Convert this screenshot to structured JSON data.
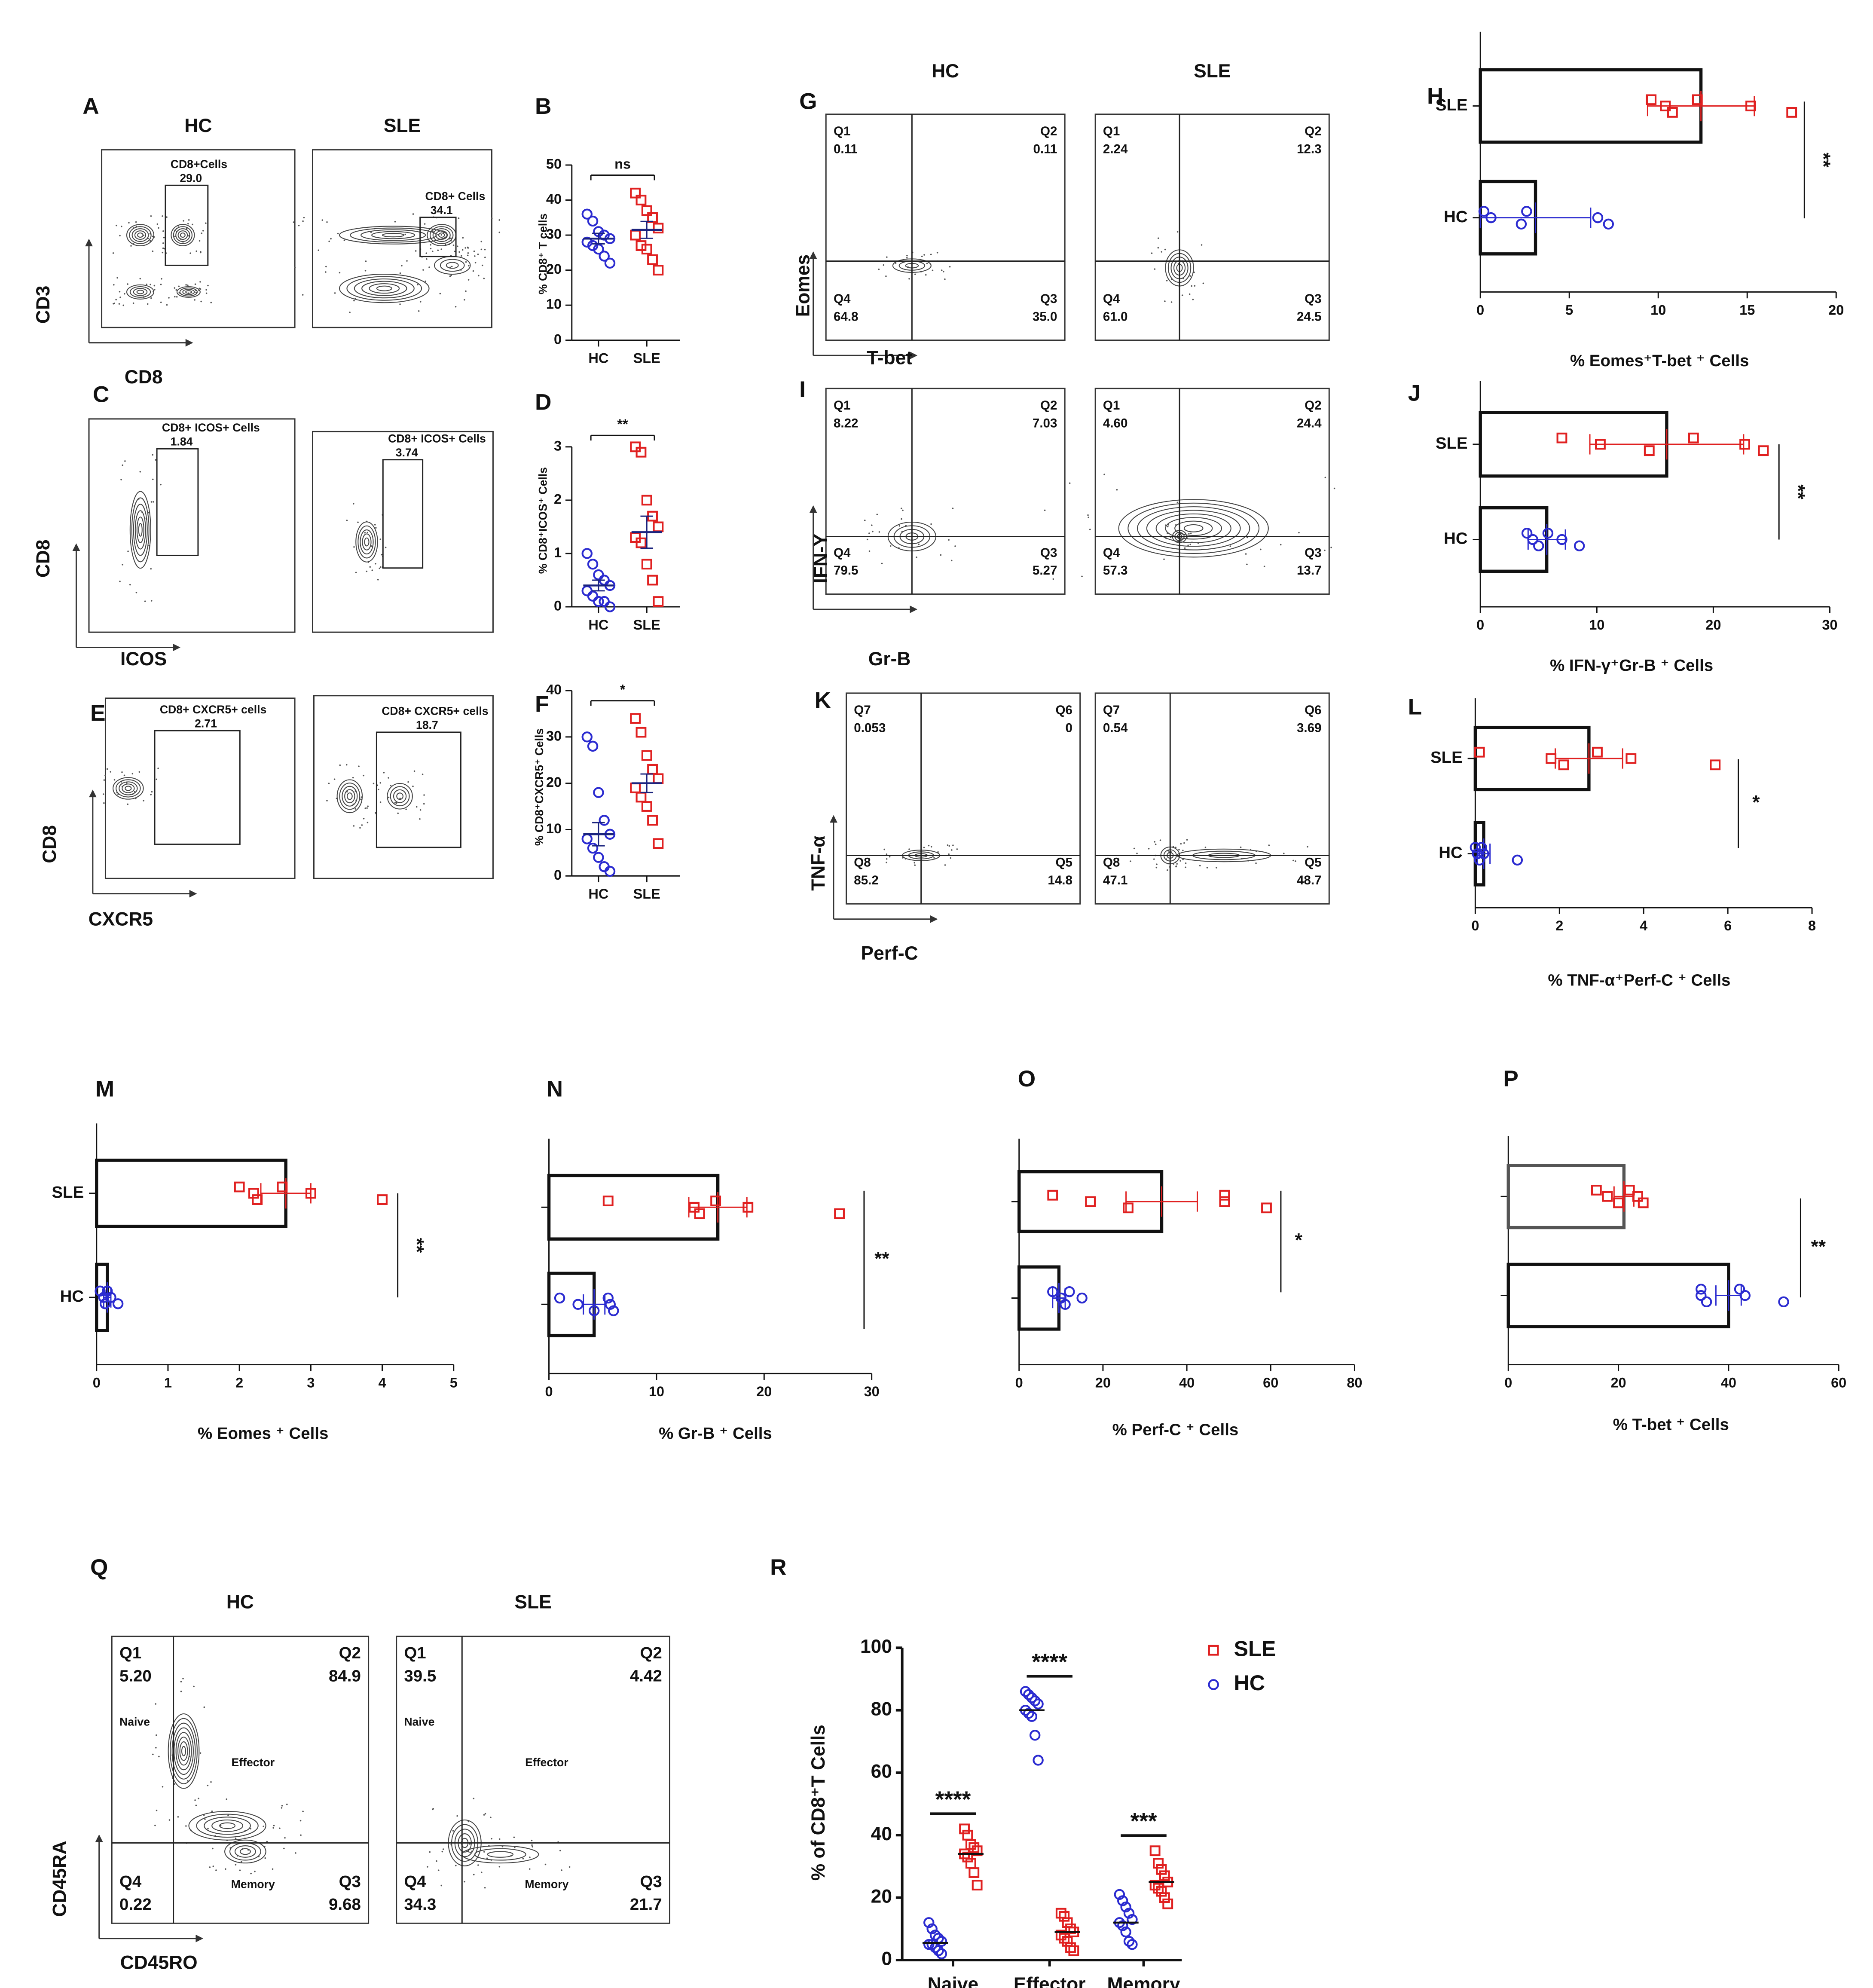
{
  "chart_data": [
    {
      "type": "flow",
      "panel": "A",
      "xlabel": "CD8",
      "ylabel": "CD3",
      "plots": [
        {
          "title": "HC",
          "gate": {
            "name": "CD8+Cells",
            "value": "29.0"
          }
        },
        {
          "title": "SLE",
          "gate": {
            "name": "CD8+ Cells",
            "value": "34.1"
          }
        }
      ]
    },
    {
      "type": "dot",
      "panel": "B",
      "ylabel": "% CD8⁺ T cells",
      "categories": [
        "HC",
        "SLE"
      ],
      "ylim": [
        0,
        50
      ],
      "yticks": [
        0,
        10,
        20,
        30,
        40,
        50
      ],
      "significance": "ns",
      "groups": [
        {
          "color": "#2b2bd0",
          "marker": "circle",
          "values": [
            36,
            34,
            31,
            30,
            29,
            28,
            27,
            26,
            24,
            22
          ],
          "mean": 29,
          "error": 1.5
        },
        {
          "color": "#e02020",
          "marker": "square",
          "values": [
            42,
            40,
            37,
            35,
            32,
            30,
            27,
            26,
            23,
            20
          ],
          "mean": 31.5,
          "error": 2.4
        }
      ]
    },
    {
      "type": "flow",
      "panel": "C",
      "xlabel": "ICOS",
      "ylabel": "CD8",
      "plots": [
        {
          "gate": {
            "name": "CD8+ ICOS+ Cells",
            "value": "1.84"
          }
        },
        {
          "gate": {
            "name": "CD8+ ICOS+ Cells",
            "value": "3.74"
          }
        }
      ]
    },
    {
      "type": "dot",
      "panel": "D",
      "ylabel": "% CD8⁺ICOS⁺ Cells",
      "categories": [
        "HC",
        "SLE"
      ],
      "ylim": [
        0,
        3
      ],
      "yticks": [
        0,
        1,
        2,
        3
      ],
      "significance": "**",
      "groups": [
        {
          "color": "#2b2bd0",
          "marker": "circle",
          "values": [
            1.0,
            0.8,
            0.6,
            0.5,
            0.4,
            0.3,
            0.2,
            0.1,
            0.1,
            0.0
          ],
          "mean": 0.4,
          "error": 0.1
        },
        {
          "color": "#e02020",
          "marker": "square",
          "values": [
            3.0,
            2.9,
            2.0,
            1.7,
            1.5,
            1.3,
            1.2,
            0.8,
            0.5,
            0.1
          ],
          "mean": 1.4,
          "error": 0.3
        }
      ]
    },
    {
      "type": "flow",
      "panel": "E",
      "xlabel": "CXCR5",
      "ylabel": "CD8",
      "plots": [
        {
          "gate": {
            "name": "CD8+ CXCR5+ cells",
            "value": "2.71"
          }
        },
        {
          "gate": {
            "name": "CD8+ CXCR5+ cells",
            "value": "18.7"
          }
        }
      ]
    },
    {
      "type": "dot",
      "panel": "F",
      "ylabel": "% CD8⁺CXCR5⁺ Cells",
      "categories": [
        "HC",
        "SLE"
      ],
      "ylim": [
        0,
        40
      ],
      "yticks": [
        0,
        10,
        20,
        30,
        40
      ],
      "significance": "*",
      "groups": [
        {
          "color": "#2b2bd0",
          "marker": "circle",
          "values": [
            30,
            28,
            18,
            12,
            9,
            8,
            6,
            4,
            2,
            1
          ],
          "mean": 9,
          "error": 2.5
        },
        {
          "color": "#e02020",
          "marker": "square",
          "values": [
            34,
            31,
            26,
            23,
            21,
            19,
            17,
            15,
            12,
            7
          ],
          "mean": 20,
          "error": 2
        }
      ]
    },
    {
      "type": "flow",
      "panel": "G",
      "xlabel": "T-bet",
      "ylabel": "Eomes",
      "plots": [
        {
          "title": "HC",
          "quadrants": [
            {
              "name": "Q1",
              "value": "0.11"
            },
            {
              "name": "Q2",
              "value": "0.11"
            },
            {
              "name": "Q4",
              "value": "64.8"
            },
            {
              "name": "Q3",
              "value": "35.0"
            }
          ]
        },
        {
          "title": "SLE",
          "quadrants": [
            {
              "name": "Q1",
              "value": "2.24"
            },
            {
              "name": "Q2",
              "value": "12.3"
            },
            {
              "name": "Q4",
              "value": "61.0"
            },
            {
              "name": "Q3",
              "value": "24.5"
            }
          ]
        }
      ]
    },
    {
      "type": "hbar",
      "panel": "H",
      "xlabel": "% Eomes⁺T-bet ⁺ Cells",
      "categories": [
        "SLE",
        "HC"
      ],
      "xlim": [
        0,
        20
      ],
      "xticks": [
        0,
        5,
        10,
        15,
        20
      ],
      "significance": "**",
      "values": [
        12.4,
        3.1
      ],
      "errors": [
        3.0,
        3.1
      ],
      "points": [
        [
          9.6,
          10.4,
          10.8,
          12.2,
          15.2,
          17.5
        ],
        [
          0.2,
          0.6,
          2.3,
          2.6,
          6.6,
          7.2
        ]
      ],
      "point_colors": [
        "#e02020",
        "#2b2bd0"
      ],
      "markers": [
        "square",
        "circle"
      ],
      "bar_colors": [
        "#111",
        "#111"
      ]
    },
    {
      "type": "flow",
      "panel": "I",
      "xlabel": "Gr-B",
      "ylabel": "IFN-Y",
      "plots": [
        {
          "quadrants": [
            {
              "name": "Q1",
              "value": "8.22"
            },
            {
              "name": "Q2",
              "value": "7.03"
            },
            {
              "name": "Q4",
              "value": "79.5"
            },
            {
              "name": "Q3",
              "value": "5.27"
            }
          ]
        },
        {
          "quadrants": [
            {
              "name": "Q1",
              "value": "4.60"
            },
            {
              "name": "Q2",
              "value": "24.4"
            },
            {
              "name": "Q4",
              "value": "57.3"
            },
            {
              "name": "Q3",
              "value": "13.7"
            }
          ]
        }
      ]
    },
    {
      "type": "hbar",
      "panel": "J",
      "xlabel": "% IFN-γ⁺Gr-B ⁺ Cells",
      "categories": [
        "SLE",
        "HC"
      ],
      "xlim": [
        0,
        30
      ],
      "xticks": [
        0,
        10,
        20,
        30
      ],
      "significance": "**",
      "values": [
        16,
        5.7
      ],
      "errors": [
        6.6,
        1.6
      ],
      "points": [
        [
          7,
          10.3,
          14.5,
          18.3,
          22.7,
          24.3
        ],
        [
          4.0,
          4.5,
          5,
          5.8,
          7,
          8.5
        ]
      ],
      "point_colors": [
        "#e02020",
        "#2b2bd0"
      ],
      "markers": [
        "square",
        "circle"
      ],
      "bar_colors": [
        "#111",
        "#111"
      ]
    },
    {
      "type": "flow",
      "panel": "K",
      "xlabel": "Perf-C",
      "ylabel": "TNF-α",
      "plots": [
        {
          "quadrants": [
            {
              "name": "Q7",
              "value": "0.053"
            },
            {
              "name": "Q6",
              "value": "0"
            },
            {
              "name": "Q8",
              "value": "85.2"
            },
            {
              "name": "Q5",
              "value": "14.8"
            }
          ]
        },
        {
          "quadrants": [
            {
              "name": "Q7",
              "value": "0.54"
            },
            {
              "name": "Q6",
              "value": "3.69"
            },
            {
              "name": "Q8",
              "value": "47.1"
            },
            {
              "name": "Q5",
              "value": "48.7"
            }
          ]
        }
      ]
    },
    {
      "type": "hbar",
      "panel": "L",
      "xlabel": "% TNF-α⁺Perf-C ⁺ Cells",
      "categories": [
        "SLE",
        "HC"
      ],
      "xlim": [
        0,
        8
      ],
      "xticks": [
        0,
        2,
        4,
        6,
        8
      ],
      "significance": "*",
      "values": [
        2.7,
        0.2
      ],
      "errors": [
        0.8,
        0.15
      ],
      "points": [
        [
          0.1,
          1.8,
          2.1,
          2.9,
          3.7,
          5.7
        ],
        [
          0.0,
          0.05,
          0.1,
          0.15,
          0.2,
          1.0
        ]
      ],
      "point_colors": [
        "#e02020",
        "#2b2bd0"
      ],
      "markers": [
        "square",
        "circle"
      ],
      "bar_colors": [
        "#111",
        "#111"
      ]
    },
    {
      "type": "hbar",
      "panel": "M",
      "xlabel": "% Eomes ⁺ Cells",
      "categories": [
        "SLE",
        "HC"
      ],
      "xlim": [
        0,
        5
      ],
      "xticks": [
        0,
        1,
        2,
        3,
        4,
        5
      ],
      "significance": "**",
      "values": [
        2.65,
        0.15
      ],
      "errors": [
        0.35,
        0.05
      ],
      "points": [
        [
          2.0,
          2.2,
          2.25,
          2.6,
          3.0,
          4.0
        ],
        [
          0.05,
          0.1,
          0.12,
          0.15,
          0.2,
          0.3
        ]
      ],
      "point_colors": [
        "#e02020",
        "#2b2bd0"
      ],
      "markers": [
        "square",
        "circle"
      ],
      "bar_colors": [
        "#111",
        "#111"
      ]
    },
    {
      "type": "hbar",
      "panel": "N",
      "xlabel": "% Gr-B ⁺ Cells",
      "categories": [
        null,
        null
      ],
      "xlim": [
        0,
        30
      ],
      "xticks": [
        0,
        10,
        20,
        30
      ],
      "significance": "**",
      "values": [
        15.7,
        4.2
      ],
      "errors": [
        2.7,
        1
      ],
      "points": [
        [
          5.5,
          13.5,
          14,
          15.5,
          18.5,
          27
        ],
        [
          1,
          2.7,
          4.2,
          5.5,
          5.7,
          6
        ]
      ],
      "point_colors": [
        "#e02020",
        "#2b2bd0"
      ],
      "markers": [
        "square",
        "circle"
      ],
      "bar_colors": [
        "#111",
        "#111"
      ]
    },
    {
      "type": "hbar",
      "panel": "O",
      "xlabel": "% Perf-C ⁺ Cells",
      "categories": [
        null,
        null
      ],
      "xlim": [
        0,
        80
      ],
      "xticks": [
        0,
        20,
        40,
        60,
        80
      ],
      "significance": "*",
      "values": [
        34,
        9.5
      ],
      "errors": [
        8.5,
        1.5
      ],
      "points": [
        [
          8,
          17,
          26,
          49,
          49,
          59
        ],
        [
          8,
          10,
          11,
          12,
          15
        ]
      ],
      "point_colors": [
        "#e02020",
        "#2b2bd0"
      ],
      "markers": [
        "square",
        "circle"
      ],
      "bar_colors": [
        "#111",
        "#111"
      ]
    },
    {
      "type": "hbar",
      "panel": "P",
      "xlabel": "% T-bet ⁺ Cells",
      "categories": [
        null,
        null
      ],
      "xlim": [
        0,
        60
      ],
      "xticks": [
        0,
        20,
        40,
        60
      ],
      "significance": "**",
      "values": [
        21,
        40
      ],
      "errors": [
        1.8,
        2.3
      ],
      "points": [
        [
          16,
          18,
          20,
          22,
          23.5,
          24.5
        ],
        [
          35,
          35,
          36,
          42,
          43,
          50
        ]
      ],
      "point_colors": [
        "#e02020",
        "#2b2bd0"
      ],
      "markers": [
        "square",
        "circle"
      ],
      "bar_colors": [
        "#555",
        "#111"
      ]
    },
    {
      "type": "flow",
      "panel": "Q",
      "xlabel": "CD45RO",
      "ylabel": "CD45RA",
      "regions": [
        "Naive",
        "Effector",
        "Memory"
      ],
      "plots": [
        {
          "title": "HC",
          "quadrants": [
            {
              "name": "Q1",
              "value": "5.20"
            },
            {
              "name": "Q2",
              "value": "84.9"
            },
            {
              "name": "Q4",
              "value": "0.22"
            },
            {
              "name": "Q3",
              "value": "9.68"
            }
          ]
        },
        {
          "title": "SLE",
          "quadrants": [
            {
              "name": "Q1",
              "value": "39.5"
            },
            {
              "name": "Q2",
              "value": "4.42"
            },
            {
              "name": "Q4",
              "value": "34.3"
            },
            {
              "name": "Q3",
              "value": "21.7"
            }
          ]
        }
      ]
    },
    {
      "type": "dot",
      "panel": "R",
      "ylabel": "% of CD8⁺T Cells",
      "categories": [
        "Naive",
        "Effector",
        "Memory"
      ],
      "ylim": [
        0,
        100
      ],
      "yticks": [
        0,
        20,
        40,
        60,
        80,
        100
      ],
      "significance": [
        "****",
        "****",
        "***"
      ],
      "series": [
        {
          "name": "SLE",
          "color": "#e02020",
          "marker": "square",
          "values": [
            [
              42,
              40,
              37,
              36,
              35,
              34,
              33,
              31,
              28,
              24
            ],
            [
              15,
              14,
              12,
              10,
              9,
              8,
              7,
              6,
              4,
              3
            ],
            [
              35,
              31,
              29,
              27,
              25,
              24,
              23,
              22,
              20,
              18
            ]
          ],
          "means": [
            34,
            9,
            25
          ]
        },
        {
          "name": "HC",
          "color": "#2b2bd0",
          "marker": "circle",
          "values": [
            [
              12,
              10,
              8,
              7,
              6,
              5,
              5,
              4,
              3,
              2
            ],
            [
              86,
              85,
              84,
              83,
              82,
              80,
              79,
              78,
              72,
              64
            ],
            [
              21,
              19,
              17,
              15,
              13,
              12,
              11,
              9,
              6,
              5
            ]
          ],
          "means": [
            5.5,
            80,
            12
          ]
        }
      ]
    }
  ]
}
